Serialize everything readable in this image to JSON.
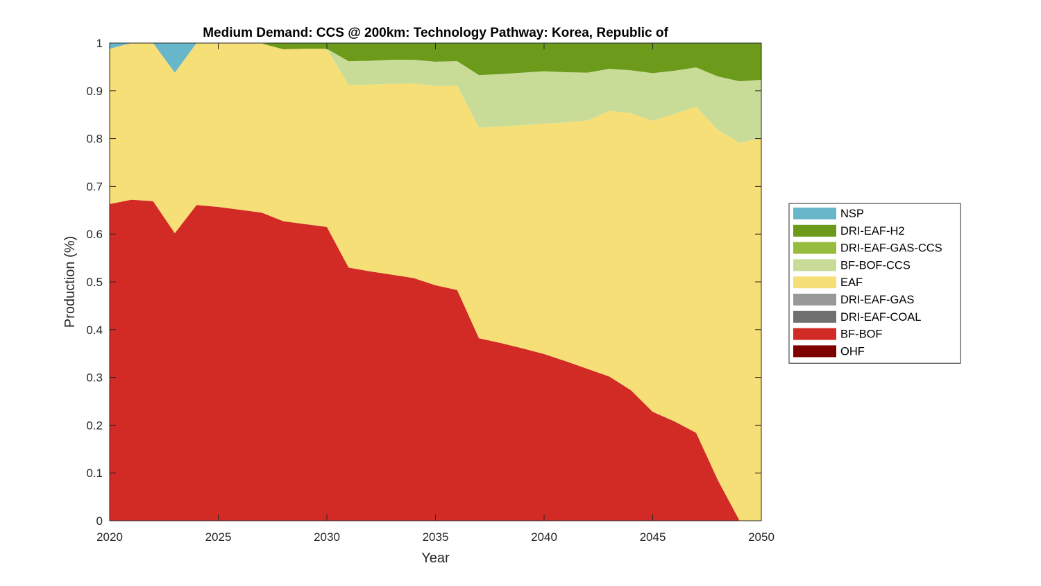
{
  "chart_data": {
    "type": "area",
    "stacked": true,
    "title": "Medium Demand: CCS @ 200km: Technology Pathway: Korea, Republic of",
    "xlabel": "Year",
    "ylabel": "Production (%)",
    "xlim": [
      2020,
      2050
    ],
    "ylim": [
      0,
      1
    ],
    "xticks": [
      2020,
      2025,
      2030,
      2035,
      2040,
      2045,
      2050
    ],
    "yticks": [
      0,
      0.1,
      0.2,
      0.3,
      0.4,
      0.5,
      0.6,
      0.7,
      0.8,
      0.9,
      1
    ],
    "ytick_labels": [
      "0",
      "0.1",
      "0.2",
      "0.3",
      "0.4",
      "0.5",
      "0.6",
      "0.7",
      "0.8",
      "0.9",
      "1"
    ],
    "grid": false,
    "legend_position": "right",
    "legend_order": [
      "NSP",
      "DRI-EAF-H2",
      "DRI-EAF-GAS-CCS",
      "BF-BOF-CCS",
      "EAF",
      "DRI-EAF-GAS",
      "DRI-EAF-COAL",
      "BF-BOF",
      "OHF"
    ],
    "x": [
      2020,
      2021,
      2022,
      2023,
      2024,
      2025,
      2026,
      2027,
      2028,
      2029,
      2030,
      2031,
      2032,
      2033,
      2034,
      2035,
      2036,
      2037,
      2038,
      2039,
      2040,
      2041,
      2042,
      2043,
      2044,
      2045,
      2046,
      2047,
      2048,
      2049,
      2050
    ],
    "series": [
      {
        "name": "OHF",
        "color": "#7f0000",
        "values": [
          0,
          0,
          0,
          0,
          0,
          0,
          0,
          0,
          0,
          0,
          0,
          0,
          0,
          0,
          0,
          0,
          0,
          0,
          0,
          0,
          0,
          0,
          0,
          0,
          0,
          0,
          0,
          0,
          0,
          0,
          0
        ]
      },
      {
        "name": "BF-BOF",
        "color": "#d22b25",
        "values": [
          0.663,
          0.672,
          0.669,
          0.602,
          0.661,
          0.657,
          0.651,
          0.645,
          0.627,
          0.621,
          0.615,
          0.53,
          0.522,
          0.515,
          0.508,
          0.493,
          0.483,
          0.382,
          0.372,
          0.361,
          0.349,
          0.334,
          0.318,
          0.302,
          0.273,
          0.228,
          0.208,
          0.184,
          0.085,
          0.0,
          0.0
        ]
      },
      {
        "name": "DRI-EAF-COAL",
        "color": "#707070",
        "values": [
          0,
          0,
          0,
          0,
          0,
          0,
          0,
          0,
          0,
          0,
          0,
          0,
          0,
          0,
          0,
          0,
          0,
          0,
          0,
          0,
          0,
          0,
          0,
          0,
          0,
          0,
          0,
          0,
          0,
          0,
          0
        ]
      },
      {
        "name": "DRI-EAF-GAS",
        "color": "#999999",
        "values": [
          0,
          0,
          0,
          0,
          0,
          0,
          0,
          0,
          0,
          0,
          0,
          0,
          0,
          0,
          0,
          0,
          0,
          0,
          0,
          0,
          0,
          0,
          0,
          0,
          0,
          0,
          0,
          0,
          0,
          0,
          0
        ]
      },
      {
        "name": "EAF",
        "color": "#f7df78",
        "values": [
          0.325,
          0.328,
          0.331,
          0.336,
          0.339,
          0.343,
          0.349,
          0.354,
          0.36,
          0.367,
          0.373,
          0.382,
          0.391,
          0.4,
          0.407,
          0.417,
          0.428,
          0.441,
          0.453,
          0.467,
          0.482,
          0.5,
          0.52,
          0.556,
          0.58,
          0.609,
          0.644,
          0.683,
          0.733,
          0.791,
          0.801
        ]
      },
      {
        "name": "BF-BOF-CCS",
        "color": "#c8dc98",
        "values": [
          0,
          0,
          0,
          0,
          0,
          0,
          0,
          0,
          0,
          0,
          0,
          0.05,
          0.05,
          0.05,
          0.05,
          0.051,
          0.051,
          0.11,
          0.11,
          0.11,
          0.11,
          0.105,
          0.1,
          0.088,
          0.09,
          0.1,
          0.09,
          0.082,
          0.112,
          0.129,
          0.122
        ]
      },
      {
        "name": "DRI-EAF-GAS-CCS",
        "color": "#97bc3d",
        "values": [
          0,
          0,
          0,
          0,
          0,
          0,
          0,
          0,
          0,
          0,
          0,
          0,
          0,
          0,
          0,
          0,
          0,
          0,
          0,
          0,
          0,
          0,
          0,
          0,
          0,
          0,
          0,
          0,
          0,
          0,
          0
        ]
      },
      {
        "name": "DRI-EAF-H2",
        "color": "#6c9a1a",
        "values": [
          0,
          0,
          0,
          0,
          0,
          0,
          0,
          0,
          0.013,
          0.012,
          0.012,
          0.038,
          0.037,
          0.035,
          0.035,
          0.039,
          0.038,
          0.067,
          0.065,
          0.062,
          0.059,
          0.061,
          0.062,
          0.054,
          0.057,
          0.063,
          0.058,
          0.051,
          0.07,
          0.08,
          0.077
        ]
      },
      {
        "name": "NSP",
        "color": "#67b6c9",
        "values": [
          0.012,
          0,
          0,
          0.062,
          0,
          0,
          0,
          0,
          0,
          0,
          0,
          0,
          0,
          0,
          0,
          0,
          0,
          0,
          0,
          0,
          0,
          0,
          0,
          0,
          0,
          0,
          0,
          0,
          0,
          0,
          0
        ]
      }
    ]
  }
}
